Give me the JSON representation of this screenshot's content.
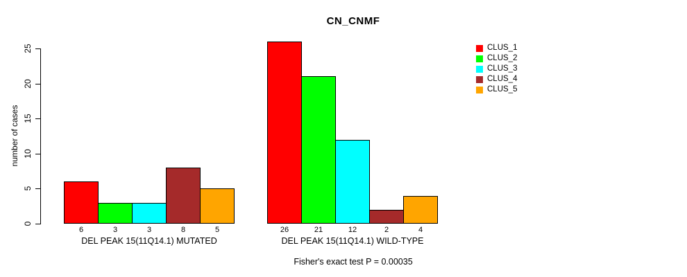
{
  "chart_data": {
    "type": "bar",
    "title": "CN_CNMF",
    "ylabel": "number of cases",
    "ylim": [
      0,
      26
    ],
    "yticks": [
      0,
      5,
      10,
      15,
      20,
      25
    ],
    "grid": false,
    "legend_position": "top-right-outside",
    "categories": [
      "DEL PEAK 15(11Q14.1) MUTATED",
      "DEL PEAK 15(11Q14.1) WILD-TYPE"
    ],
    "series": [
      {
        "name": "CLUS_1",
        "color": "#FF0000",
        "values": [
          6,
          26
        ]
      },
      {
        "name": "CLUS_2",
        "color": "#00FF00",
        "values": [
          3,
          21
        ]
      },
      {
        "name": "CLUS_3",
        "color": "#00FFFF",
        "values": [
          3,
          12
        ]
      },
      {
        "name": "CLUS_4",
        "color": "#A52A2A",
        "values": [
          8,
          2
        ]
      },
      {
        "name": "CLUS_5",
        "color": "#FFA500",
        "values": [
          5,
          4
        ]
      }
    ],
    "bar_value_labels_shown": true,
    "annotation": "Fisher's exact test P = 0.00035"
  }
}
